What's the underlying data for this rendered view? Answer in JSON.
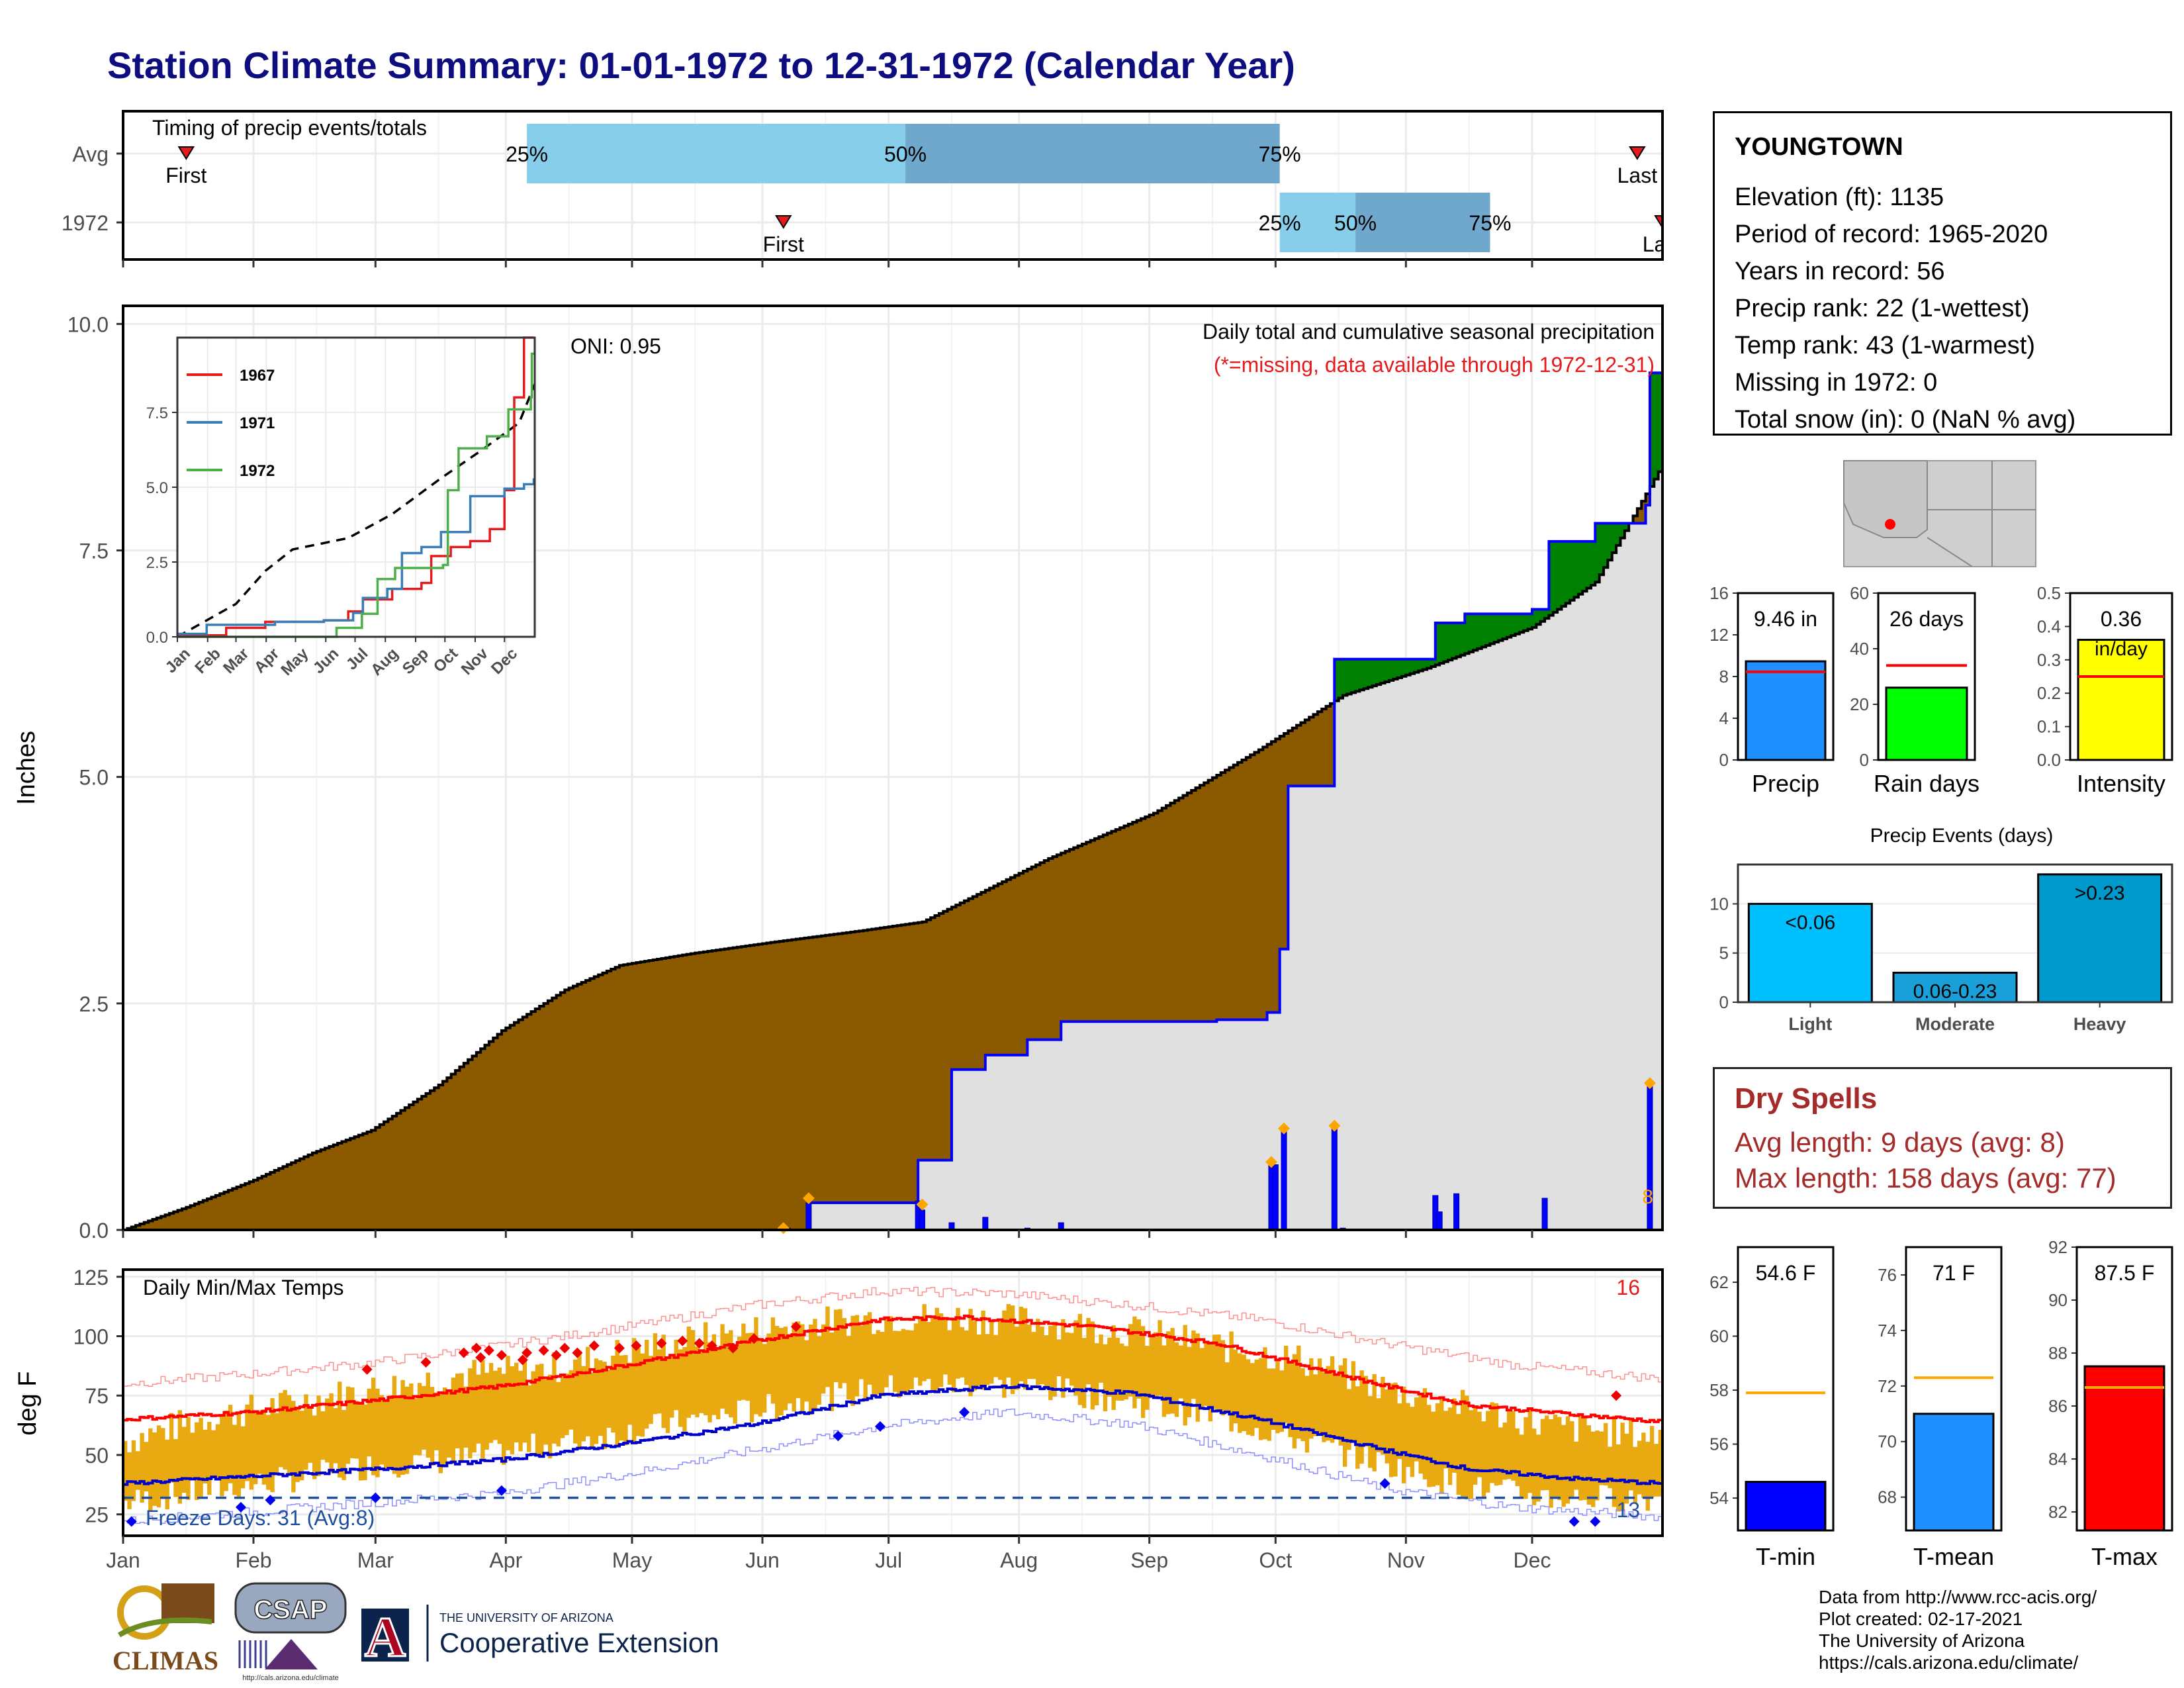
{
  "title": "Station Climate Summary: 01-01-1972 to 12-31-1972 (Calendar Year)",
  "months": [
    "Jan",
    "Feb",
    "Mar",
    "Apr",
    "May",
    "Jun",
    "Jul",
    "Aug",
    "Sep",
    "Oct",
    "Nov",
    "Dec"
  ],
  "timing": {
    "title": "Timing of precip events/totals",
    "rows": [
      {
        "label": "Avg",
        "first_doy": 15,
        "last_doy": 360,
        "p25_doy": 96,
        "p50_doy": 186,
        "p75_doy": 275,
        "first_label": "First",
        "last_label": "Last"
      },
      {
        "label": "1972",
        "first_doy": 157,
        "last_doy": 366,
        "p25_doy": 275,
        "p50_doy": 293,
        "p75_doy": 325,
        "first_label": "First",
        "last_label": "Last"
      }
    ],
    "pct_labels": [
      "25%",
      "50%",
      "75%"
    ]
  },
  "precip": {
    "title": "Daily total and cumulative seasonal precipitation",
    "note": "(*=missing, data available through 1972-12-31)",
    "oni": "ONI: 0.95",
    "ylabel": "Inches",
    "yticks": [
      "0.0",
      "2.5",
      "5.0",
      "7.5",
      "10.0"
    ],
    "ylim": [
      0,
      10.2
    ],
    "corner_count": "8",
    "avg_cumulative": [
      [
        0,
        0
      ],
      [
        15,
        0.25
      ],
      [
        31,
        0.55
      ],
      [
        45,
        0.85
      ],
      [
        59,
        1.1
      ],
      [
        75,
        1.6
      ],
      [
        90,
        2.2
      ],
      [
        105,
        2.65
      ],
      [
        118,
        2.92
      ],
      [
        135,
        3.05
      ],
      [
        155,
        3.18
      ],
      [
        175,
        3.3
      ],
      [
        190,
        3.4
      ],
      [
        205,
        3.75
      ],
      [
        220,
        4.1
      ],
      [
        245,
        4.6
      ],
      [
        270,
        5.3
      ],
      [
        290,
        5.9
      ],
      [
        310,
        6.2
      ],
      [
        335,
        6.65
      ],
      [
        350,
        7.15
      ],
      [
        366,
        8.45
      ]
    ],
    "year_cumulative": [
      [
        0,
        0
      ],
      [
        157,
        0
      ],
      [
        163,
        0.3
      ],
      [
        189,
        0.3
      ],
      [
        189,
        0.77
      ],
      [
        197,
        1.77
      ],
      [
        205,
        1.93
      ],
      [
        215,
        2.1
      ],
      [
        223,
        2.3
      ],
      [
        260,
        2.32
      ],
      [
        272,
        2.34
      ],
      [
        272,
        2.4
      ],
      [
        275,
        3.1
      ],
      [
        277,
        3.75
      ],
      [
        277,
        4.9
      ],
      [
        288,
        6.3
      ],
      [
        312,
        6.3
      ],
      [
        312,
        6.7
      ],
      [
        317,
        6.7
      ],
      [
        319,
        6.8
      ],
      [
        335,
        6.85
      ],
      [
        339,
        7.6
      ],
      [
        350,
        7.8
      ],
      [
        362,
        8.0
      ],
      [
        363,
        9.46
      ],
      [
        366,
        9.46
      ]
    ],
    "daily_totals": [
      [
        158,
        0.02
      ],
      [
        163,
        0.3
      ],
      [
        189,
        0.32
      ],
      [
        190,
        0.22
      ],
      [
        197,
        0.08
      ],
      [
        205,
        0.14
      ],
      [
        215,
        0.02
      ],
      [
        223,
        0.08
      ],
      [
        260,
        0.01
      ],
      [
        273,
        0.75
      ],
      [
        274,
        0.72
      ],
      [
        276,
        1.12
      ],
      [
        288,
        1.15
      ],
      [
        290,
        0.02
      ],
      [
        312,
        0.38
      ],
      [
        313,
        0.2
      ],
      [
        317,
        0.4
      ],
      [
        338,
        0.35
      ],
      [
        363,
        1.6
      ]
    ],
    "marked_days": [
      [
        157,
        0.02
      ],
      [
        163,
        0.35
      ],
      [
        190,
        0.28
      ],
      [
        273,
        0.75
      ],
      [
        276,
        1.12
      ],
      [
        288,
        1.15
      ],
      [
        363,
        1.62
      ]
    ]
  },
  "inset": {
    "series": [
      {
        "name": "1967",
        "color": "#e41a1c",
        "values": [
          [
            0,
            0.05
          ],
          [
            50,
            0.3
          ],
          [
            90,
            0.5
          ],
          [
            150,
            0.55
          ],
          [
            175,
            0.85
          ],
          [
            190,
            1.25
          ],
          [
            220,
            1.6
          ],
          [
            250,
            1.8
          ],
          [
            260,
            2.7
          ],
          [
            280,
            3.0
          ],
          [
            300,
            3.2
          ],
          [
            320,
            3.6
          ],
          [
            335,
            4.9
          ],
          [
            345,
            8.0
          ],
          [
            355,
            10.0
          ],
          [
            365,
            10.0
          ]
        ]
      },
      {
        "name": "1971",
        "color": "#377eb8",
        "values": [
          [
            0,
            0.1
          ],
          [
            30,
            0.4
          ],
          [
            100,
            0.5
          ],
          [
            150,
            0.55
          ],
          [
            180,
            0.8
          ],
          [
            190,
            1.3
          ],
          [
            215,
            1.6
          ],
          [
            230,
            2.8
          ],
          [
            250,
            3.0
          ],
          [
            270,
            3.5
          ],
          [
            300,
            4.7
          ],
          [
            335,
            4.95
          ],
          [
            355,
            5.1
          ],
          [
            365,
            5.3
          ]
        ]
      },
      {
        "name": "1972",
        "color": "#4daf4a",
        "values": [
          [
            0,
            0
          ],
          [
            157,
            0
          ],
          [
            163,
            0.3
          ],
          [
            189,
            0.77
          ],
          [
            205,
            1.93
          ],
          [
            223,
            2.3
          ],
          [
            272,
            2.4
          ],
          [
            277,
            4.9
          ],
          [
            288,
            6.3
          ],
          [
            317,
            6.7
          ],
          [
            339,
            7.6
          ],
          [
            362,
            8.0
          ],
          [
            363,
            9.46
          ],
          [
            366,
            9.46
          ]
        ]
      }
    ],
    "avg_values": [
      [
        0,
        0
      ],
      [
        60,
        1.1
      ],
      [
        90,
        2.2
      ],
      [
        118,
        2.92
      ],
      [
        175,
        3.3
      ],
      [
        220,
        4.1
      ],
      [
        270,
        5.3
      ],
      [
        310,
        6.2
      ],
      [
        350,
        7.15
      ],
      [
        366,
        8.45
      ]
    ],
    "yticks": [
      "0.0",
      "2.5",
      "5.0",
      "7.5"
    ],
    "ylim": [
      0,
      10
    ]
  },
  "temps": {
    "title": "Daily Min/Max Temps",
    "ylabel": "deg F",
    "yticks": [
      "25",
      "50",
      "75",
      "100",
      "125"
    ],
    "ylim": [
      16,
      128
    ],
    "count_high": "16",
    "count_low": "13",
    "freeze_label": "Freeze Days: 31 (Avg:8)",
    "freeze_line": 32,
    "avg_max": [
      [
        0,
        65
      ],
      [
        30,
        68
      ],
      [
        60,
        73
      ],
      [
        90,
        79
      ],
      [
        120,
        88
      ],
      [
        150,
        98
      ],
      [
        180,
        107
      ],
      [
        200,
        108
      ],
      [
        230,
        104
      ],
      [
        260,
        97
      ],
      [
        280,
        88
      ],
      [
        300,
        79
      ],
      [
        320,
        71
      ],
      [
        345,
        67
      ],
      [
        366,
        64
      ]
    ],
    "avg_min": [
      [
        0,
        38
      ],
      [
        30,
        41
      ],
      [
        60,
        44
      ],
      [
        90,
        48
      ],
      [
        120,
        55
      ],
      [
        150,
        63
      ],
      [
        180,
        75
      ],
      [
        210,
        79
      ],
      [
        240,
        76
      ],
      [
        270,
        65
      ],
      [
        300,
        52
      ],
      [
        320,
        44
      ],
      [
        345,
        40
      ],
      [
        366,
        38
      ]
    ],
    "rec_max": [
      [
        0,
        80
      ],
      [
        30,
        84
      ],
      [
        60,
        89
      ],
      [
        90,
        96
      ],
      [
        120,
        104
      ],
      [
        150,
        113
      ],
      [
        180,
        119
      ],
      [
        210,
        118
      ],
      [
        240,
        113
      ],
      [
        270,
        107
      ],
      [
        300,
        97
      ],
      [
        330,
        88
      ],
      [
        366,
        82
      ]
    ],
    "rec_min": [
      [
        0,
        22
      ],
      [
        30,
        26
      ],
      [
        60,
        30
      ],
      [
        90,
        34
      ],
      [
        120,
        42
      ],
      [
        150,
        52
      ],
      [
        180,
        62
      ],
      [
        210,
        68
      ],
      [
        240,
        63
      ],
      [
        270,
        50
      ],
      [
        300,
        36
      ],
      [
        330,
        28
      ],
      [
        366,
        24
      ]
    ],
    "yr_max": [
      [
        0,
        56
      ],
      [
        20,
        66
      ],
      [
        40,
        72
      ],
      [
        60,
        78
      ],
      [
        80,
        84
      ],
      [
        100,
        86
      ],
      [
        120,
        94
      ],
      [
        140,
        100
      ],
      [
        160,
        105
      ],
      [
        180,
        108
      ],
      [
        200,
        108
      ],
      [
        220,
        106
      ],
      [
        240,
        102
      ],
      [
        260,
        96
      ],
      [
        280,
        90
      ],
      [
        300,
        78
      ],
      [
        320,
        70
      ],
      [
        340,
        62
      ],
      [
        366,
        58
      ]
    ],
    "yr_min": [
      [
        0,
        30
      ],
      [
        20,
        35
      ],
      [
        40,
        40
      ],
      [
        60,
        46
      ],
      [
        80,
        48
      ],
      [
        100,
        54
      ],
      [
        120,
        60
      ],
      [
        140,
        66
      ],
      [
        160,
        72
      ],
      [
        180,
        78
      ],
      [
        200,
        80
      ],
      [
        220,
        78
      ],
      [
        240,
        72
      ],
      [
        260,
        66
      ],
      [
        280,
        56
      ],
      [
        300,
        46
      ],
      [
        320,
        36
      ],
      [
        340,
        32
      ],
      [
        366,
        32
      ]
    ],
    "record_high_days": [
      [
        58,
        86
      ],
      [
        72,
        89
      ],
      [
        81,
        93
      ],
      [
        84,
        95
      ],
      [
        87,
        94
      ],
      [
        90,
        92
      ],
      [
        96,
        93
      ],
      [
        100,
        94
      ],
      [
        105,
        95
      ],
      [
        112,
        96
      ],
      [
        118,
        95
      ],
      [
        122,
        96
      ],
      [
        128,
        97
      ],
      [
        133,
        98
      ],
      [
        137,
        97
      ],
      [
        140,
        96
      ],
      [
        145,
        95
      ],
      [
        150,
        99
      ],
      [
        160,
        104
      ],
      [
        355,
        75
      ],
      [
        85,
        91
      ],
      [
        95,
        90
      ],
      [
        103,
        92
      ],
      [
        108,
        93
      ]
    ],
    "record_low_days": [
      [
        2,
        22
      ],
      [
        28,
        28
      ],
      [
        35,
        31
      ],
      [
        60,
        32
      ],
      [
        90,
        35
      ],
      [
        170,
        58
      ],
      [
        180,
        62
      ],
      [
        200,
        68
      ],
      [
        300,
        38
      ],
      [
        345,
        22
      ],
      [
        350,
        22
      ]
    ]
  },
  "stats": {
    "station": "YOUNGTOWN",
    "lines": [
      "Elevation (ft): 1135",
      "Period of record: 1965-2020",
      "Years in record: 56",
      "Precip rank: 22 (1-wettest)",
      "Temp rank: 43 (1-warmest)",
      "Missing in 1972: 0",
      "Total snow (in): 0 (NaN % avg)"
    ]
  },
  "bar_panels": [
    {
      "label": "Precip",
      "value_text": "9.46 in",
      "value": 9.46,
      "avg": 8.45,
      "ylim": [
        0,
        16
      ],
      "yticks": [
        "0",
        "4",
        "8",
        "12",
        "16"
      ],
      "color": "#1e90ff"
    },
    {
      "label": "Rain days",
      "value_text": "26 days",
      "value": 26,
      "avg": 34,
      "ylim": [
        0,
        60
      ],
      "yticks": [
        "0",
        "20",
        "40",
        "60"
      ],
      "color": "#00ff00"
    },
    {
      "label": "Intensity",
      "value_text": "0.36",
      "unit": "in/day",
      "value": 0.36,
      "avg": 0.25,
      "ylim": [
        0,
        0.5
      ],
      "yticks": [
        "0.0",
        "0.1",
        "0.2",
        "0.3",
        "0.4",
        "0.5"
      ],
      "color": "#ffff00"
    }
  ],
  "events": {
    "title": "Precip Events (days)",
    "categories": [
      "Light",
      "Moderate",
      "Heavy"
    ],
    "values": [
      10,
      3,
      13
    ],
    "labels": [
      "<0.06",
      "0.06-0.23",
      ">0.23"
    ],
    "yticks": [
      "0",
      "5",
      "10"
    ],
    "ylim": [
      0,
      14
    ],
    "colors": [
      "#00bfff",
      "#1aa0d8",
      "#0099cc"
    ]
  },
  "dry_spells": {
    "title": "Dry Spells",
    "avg_line": "Avg length: 9 days (avg: 8)",
    "max_line": "Max length: 158 days (avg: 77)"
  },
  "temp_panels": [
    {
      "label": "T-min",
      "value_text": "54.6 F",
      "value": 54.6,
      "avg": 57.9,
      "ylim": [
        52.8,
        63.3
      ],
      "yticks": [
        "54",
        "56",
        "58",
        "60",
        "62"
      ],
      "color": "#0000ff"
    },
    {
      "label": "T-mean",
      "value_text": "71 F",
      "value": 71.0,
      "avg": 72.3,
      "ylim": [
        66.8,
        77.0
      ],
      "yticks": [
        "68",
        "70",
        "72",
        "74",
        "76"
      ],
      "color": "#1e90ff"
    },
    {
      "label": "T-max",
      "value_text": "87.5 F",
      "value": 87.5,
      "avg": 86.7,
      "ylim": [
        81.3,
        92.0
      ],
      "yticks": [
        "82",
        "84",
        "86",
        "88",
        "90",
        "92"
      ],
      "color": "#ff0000"
    }
  ],
  "credits": [
    "Data from http://www.rcc-acis.org/",
    "Plot created: 02-17-2021",
    "The University of Arizona",
    "https://cals.arizona.edu/climate/"
  ],
  "logos": {
    "climas": "CLIMAS",
    "csap": "CSAP",
    "csap_url": "http://cals.arizona.edu/climate",
    "ua_small": "THE UNIVERSITY OF ARIZONA",
    "ua_big": "Cooperative Extension",
    "ua_letter": "A"
  },
  "colors": {
    "title": "#0d0d80",
    "brown": "#8b5a00",
    "gray_fill": "#e0e0e0",
    "green": "#008000",
    "blue": "#0000ff",
    "orange": "#ffa500",
    "gold": "#e8a911",
    "light_blue": "#87ceeb",
    "mid_blue": "#6fa8cc"
  }
}
